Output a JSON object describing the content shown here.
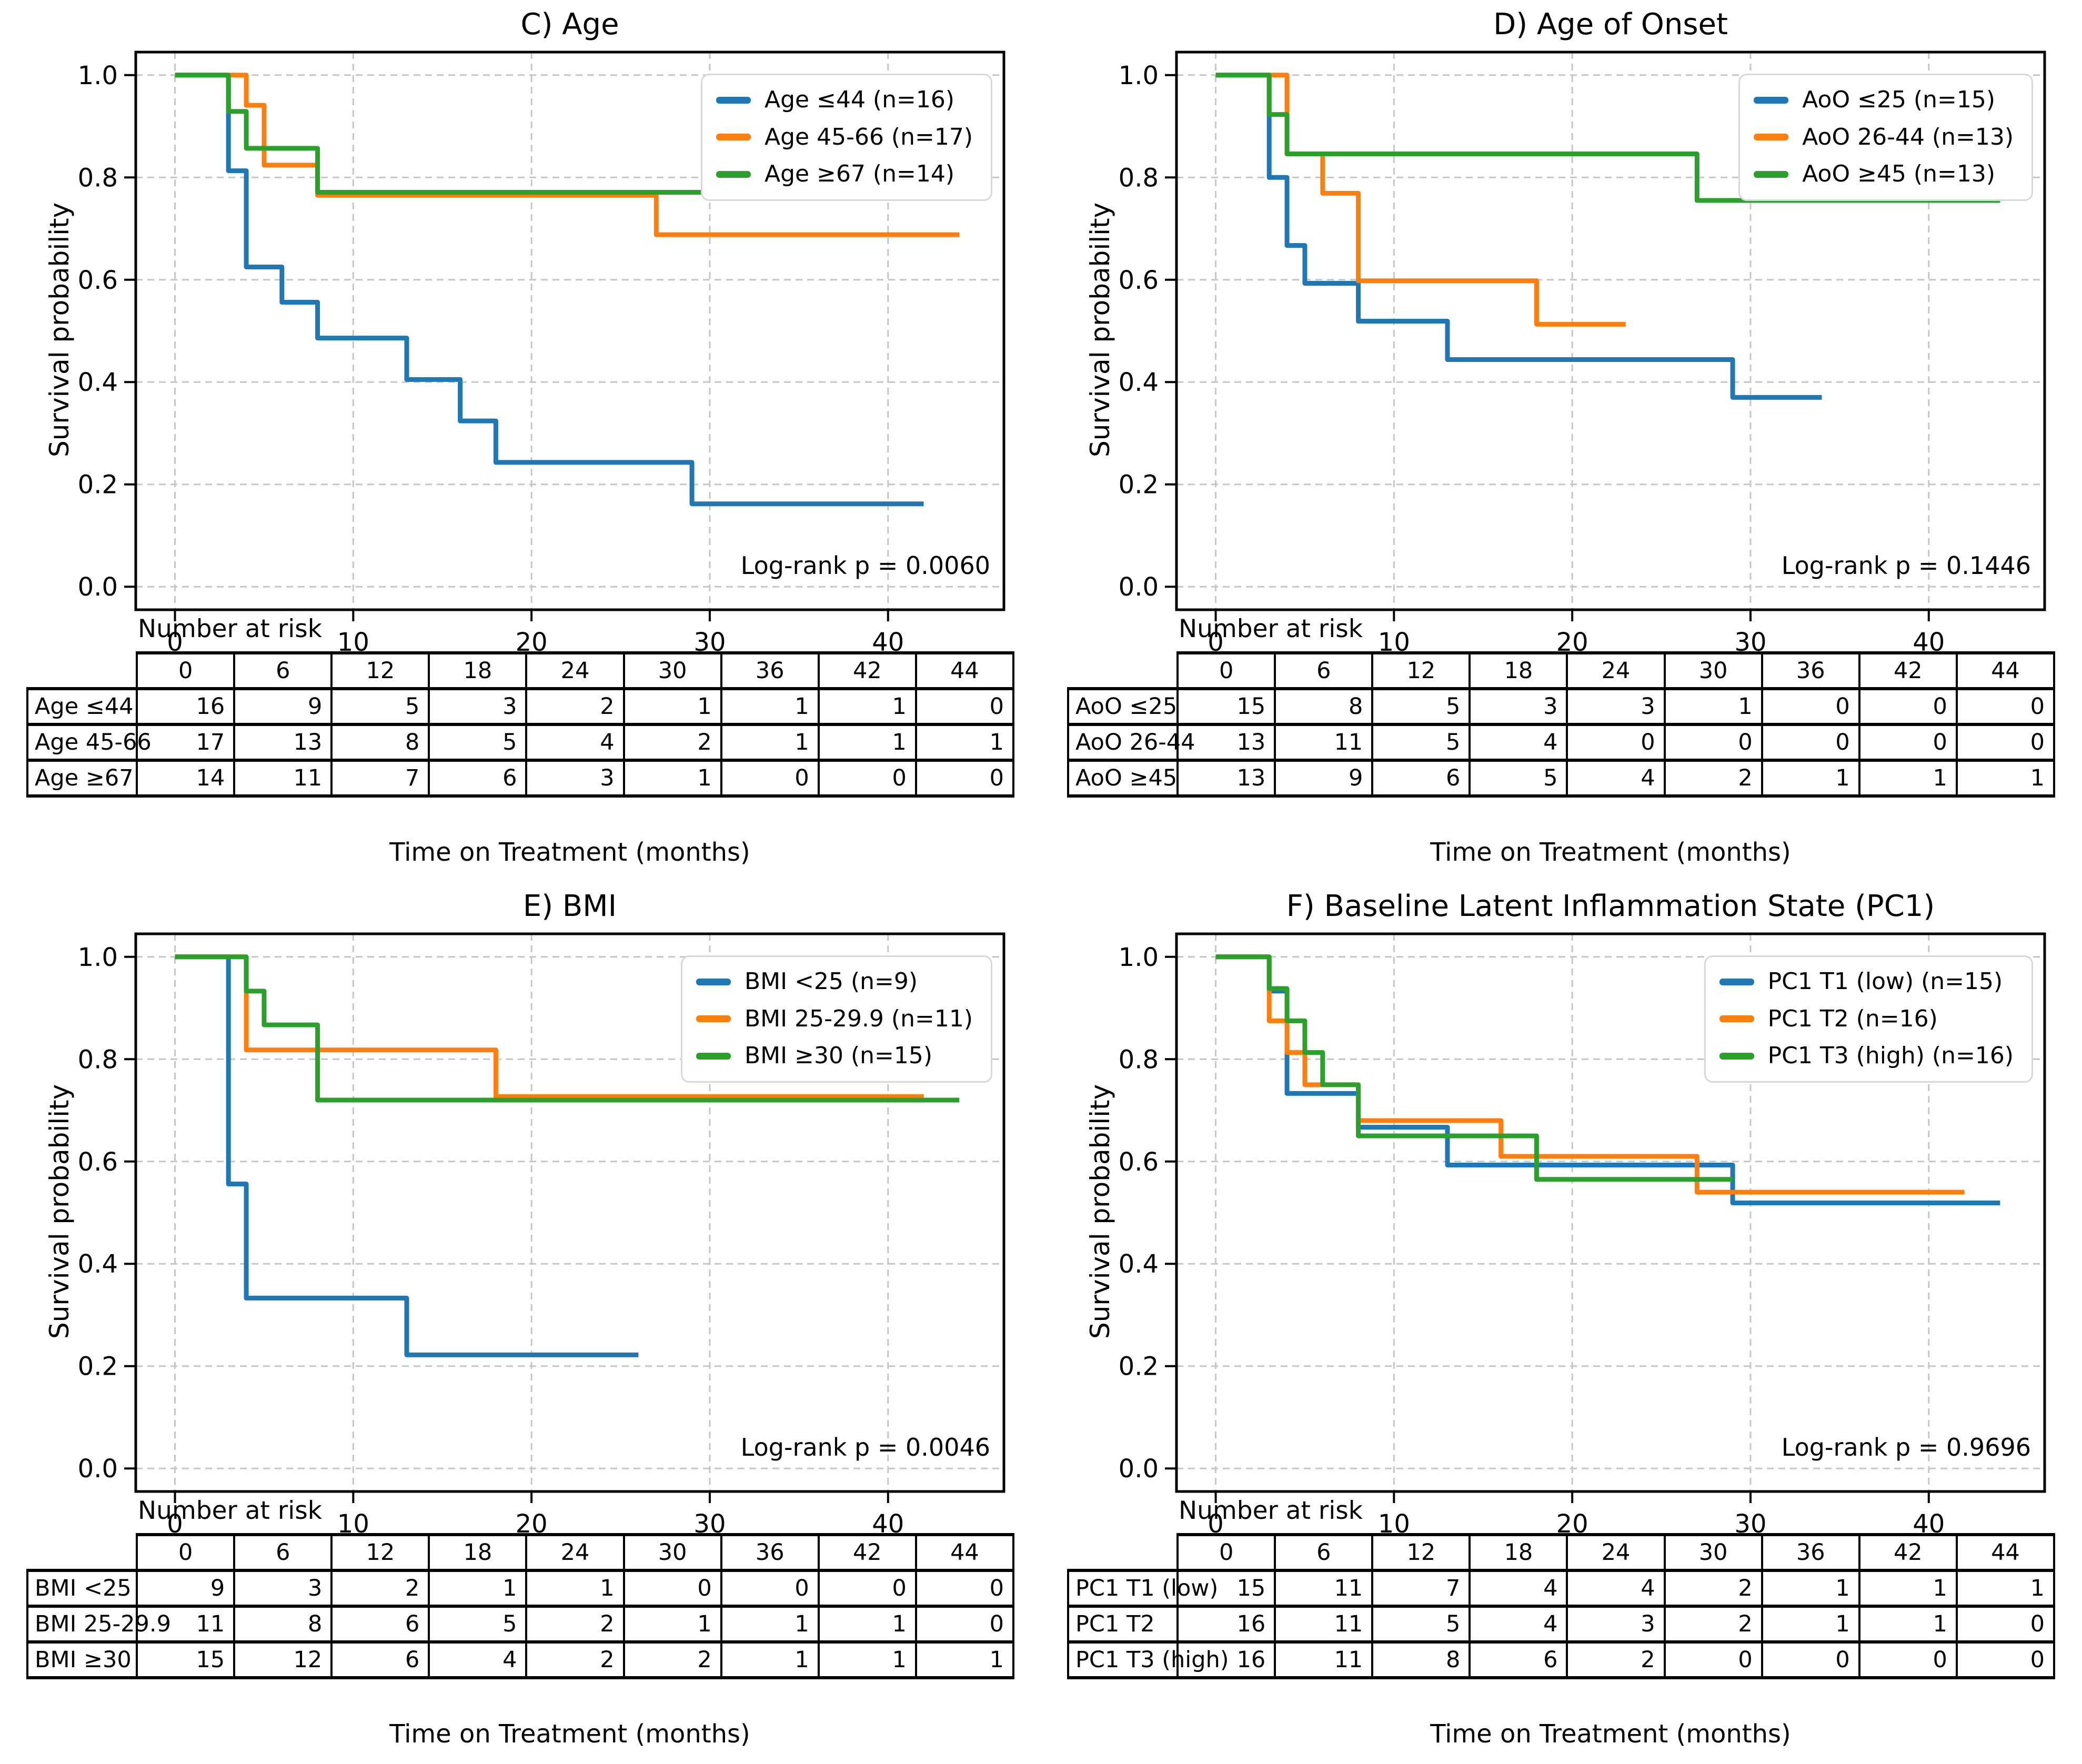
{
  "shared": {
    "ylabel": "Survival probability",
    "xlabel": "Time on Treatment (months)",
    "number_at_risk_label": "Number at risk",
    "x_ticks": [
      0,
      10,
      20,
      30,
      40
    ],
    "y_ticks": [
      0.0,
      0.2,
      0.4,
      0.6,
      0.8,
      1.0
    ],
    "risk_times": [
      0,
      6,
      12,
      18,
      24,
      30,
      36,
      42,
      44
    ],
    "colors": {
      "blue": "#1f77b4",
      "orange": "#ff7f0e",
      "green": "#2ca02c"
    }
  },
  "chart_data": [
    {
      "type": "line",
      "subtype": "kaplan-meier-step",
      "title": "C) Age",
      "xlabel": "Time on Treatment (months)",
      "ylabel": "Survival probability",
      "pvalue_label": "Log-rank p = 0.0060",
      "log_rank_p": 0.006,
      "xlim": [
        -2.2,
        46.5
      ],
      "ylim": [
        -0.045,
        1.045
      ],
      "x_ticks": [
        0,
        10,
        20,
        30,
        40
      ],
      "y_ticks": [
        0.0,
        0.2,
        0.4,
        0.6,
        0.8,
        1.0
      ],
      "grid": true,
      "legend_position": "upper right",
      "series": [
        {
          "name": "Age ≤44 (n=16)",
          "color": "#1f77b4",
          "steps": [
            [
              0,
              1
            ],
            [
              3,
              0.813
            ],
            [
              4,
              0.625
            ],
            [
              6,
              0.556
            ],
            [
              8,
              0.486
            ],
            [
              13,
              0.405
            ],
            [
              16,
              0.324
            ],
            [
              18,
              0.243
            ],
            [
              29,
              0.162
            ],
            [
              42,
              0.162
            ]
          ]
        },
        {
          "name": "Age 45-66 (n=17)",
          "color": "#ff7f0e",
          "steps": [
            [
              0,
              1
            ],
            [
              4,
              0.941
            ],
            [
              5,
              0.824
            ],
            [
              8,
              0.765
            ],
            [
              27,
              0.688
            ],
            [
              44,
              0.688
            ]
          ]
        },
        {
          "name": "Age ≥67 (n=14)",
          "color": "#2ca02c",
          "steps": [
            [
              0,
              1
            ],
            [
              3,
              0.929
            ],
            [
              4,
              0.857
            ],
            [
              8,
              0.771
            ],
            [
              30,
              0.771
            ]
          ]
        }
      ],
      "risk_table": {
        "times": [
          0,
          6,
          12,
          18,
          24,
          30,
          36,
          42,
          44
        ],
        "rows": [
          {
            "label": "Age ≤44",
            "values": [
              16,
              9,
              5,
              3,
              2,
              1,
              1,
              1,
              0
            ]
          },
          {
            "label": "Age 45-66",
            "values": [
              17,
              13,
              8,
              5,
              4,
              2,
              1,
              1,
              1
            ]
          },
          {
            "label": "Age ≥67",
            "values": [
              14,
              11,
              7,
              6,
              3,
              1,
              0,
              0,
              0
            ]
          }
        ]
      }
    },
    {
      "type": "line",
      "subtype": "kaplan-meier-step",
      "title": "D) Age of Onset",
      "xlabel": "Time on Treatment (months)",
      "ylabel": "Survival probability",
      "pvalue_label": "Log-rank p = 0.1446",
      "log_rank_p": 0.1446,
      "xlim": [
        -2.2,
        46.5
      ],
      "ylim": [
        -0.045,
        1.045
      ],
      "x_ticks": [
        0,
        10,
        20,
        30,
        40
      ],
      "y_ticks": [
        0.0,
        0.2,
        0.4,
        0.6,
        0.8,
        1.0
      ],
      "grid": true,
      "legend_position": "upper right",
      "series": [
        {
          "name": "AoO ≤25 (n=15)",
          "color": "#1f77b4",
          "steps": [
            [
              0,
              1
            ],
            [
              3,
              0.8
            ],
            [
              4,
              0.667
            ],
            [
              5,
              0.593
            ],
            [
              8,
              0.519
            ],
            [
              13,
              0.444
            ],
            [
              29,
              0.37
            ],
            [
              34,
              0.37
            ]
          ]
        },
        {
          "name": "AoO 26-44 (n=13)",
          "color": "#ff7f0e",
          "steps": [
            [
              0,
              1
            ],
            [
              4,
              0.846
            ],
            [
              6,
              0.769
            ],
            [
              8,
              0.598
            ],
            [
              18,
              0.513
            ],
            [
              23,
              0.513
            ]
          ]
        },
        {
          "name": "AoO ≥45 (n=13)",
          "color": "#2ca02c",
          "steps": [
            [
              0,
              1
            ],
            [
              3,
              0.923
            ],
            [
              4,
              0.846
            ],
            [
              27,
              0.755
            ],
            [
              44,
              0.755
            ]
          ]
        }
      ],
      "risk_table": {
        "times": [
          0,
          6,
          12,
          18,
          24,
          30,
          36,
          42,
          44
        ],
        "rows": [
          {
            "label": "AoO ≤25",
            "values": [
              15,
              8,
              5,
              3,
              3,
              1,
              0,
              0,
              0
            ]
          },
          {
            "label": "AoO 26-44",
            "values": [
              13,
              11,
              5,
              4,
              0,
              0,
              0,
              0,
              0
            ]
          },
          {
            "label": "AoO ≥45",
            "values": [
              13,
              9,
              6,
              5,
              4,
              2,
              1,
              1,
              1
            ]
          }
        ]
      }
    },
    {
      "type": "line",
      "subtype": "kaplan-meier-step",
      "title": "E) BMI",
      "xlabel": "Time on Treatment (months)",
      "ylabel": "Survival probability",
      "pvalue_label": "Log-rank p = 0.0046",
      "log_rank_p": 0.0046,
      "xlim": [
        -2.2,
        46.5
      ],
      "ylim": [
        -0.045,
        1.045
      ],
      "x_ticks": [
        0,
        10,
        20,
        30,
        40
      ],
      "y_ticks": [
        0.0,
        0.2,
        0.4,
        0.6,
        0.8,
        1.0
      ],
      "grid": true,
      "legend_position": "upper right",
      "series": [
        {
          "name": "BMI <25 (n=9)",
          "color": "#1f77b4",
          "steps": [
            [
              0,
              1
            ],
            [
              3,
              0.556
            ],
            [
              4,
              0.333
            ],
            [
              13,
              0.222
            ],
            [
              26,
              0.222
            ]
          ]
        },
        {
          "name": "BMI 25-29.9 (n=11)",
          "color": "#ff7f0e",
          "steps": [
            [
              0,
              1
            ],
            [
              4,
              0.818
            ],
            [
              18,
              0.727
            ],
            [
              42,
              0.727
            ]
          ]
        },
        {
          "name": "BMI ≥30 (n=15)",
          "color": "#2ca02c",
          "steps": [
            [
              0,
              1
            ],
            [
              4,
              0.933
            ],
            [
              5,
              0.867
            ],
            [
              8,
              0.72
            ],
            [
              44,
              0.72
            ]
          ]
        }
      ],
      "risk_table": {
        "times": [
          0,
          6,
          12,
          18,
          24,
          30,
          36,
          42,
          44
        ],
        "rows": [
          {
            "label": "BMI <25",
            "values": [
              9,
              3,
              2,
              1,
              1,
              0,
              0,
              0,
              0
            ]
          },
          {
            "label": "BMI 25-29.9",
            "values": [
              11,
              8,
              6,
              5,
              2,
              1,
              1,
              1,
              0
            ]
          },
          {
            "label": "BMI ≥30",
            "values": [
              15,
              12,
              6,
              4,
              2,
              2,
              1,
              1,
              1
            ]
          }
        ]
      }
    },
    {
      "type": "line",
      "subtype": "kaplan-meier-step",
      "title": "F) Baseline Latent Inflammation State (PC1)",
      "xlabel": "Time on Treatment (months)",
      "ylabel": "Survival probability",
      "pvalue_label": "Log-rank p = 0.9696",
      "log_rank_p": 0.9696,
      "xlim": [
        -2.2,
        46.5
      ],
      "ylim": [
        -0.045,
        1.045
      ],
      "x_ticks": [
        0,
        10,
        20,
        30,
        40
      ],
      "y_ticks": [
        0.0,
        0.2,
        0.4,
        0.6,
        0.8,
        1.0
      ],
      "grid": true,
      "legend_position": "upper right",
      "series": [
        {
          "name": "PC1 T1 (low) (n=15)",
          "color": "#1f77b4",
          "steps": [
            [
              0,
              1
            ],
            [
              3,
              0.933
            ],
            [
              4,
              0.733
            ],
            [
              8,
              0.667
            ],
            [
              13,
              0.593
            ],
            [
              29,
              0.519
            ],
            [
              44,
              0.519
            ]
          ]
        },
        {
          "name": "PC1 T2 (n=16)",
          "color": "#ff7f0e",
          "steps": [
            [
              0,
              1
            ],
            [
              3,
              0.875
            ],
            [
              4,
              0.813
            ],
            [
              5,
              0.75
            ],
            [
              8,
              0.68
            ],
            [
              16,
              0.61
            ],
            [
              27,
              0.54
            ],
            [
              42,
              0.54
            ]
          ]
        },
        {
          "name": "PC1 T3 (high) (n=16)",
          "color": "#2ca02c",
          "steps": [
            [
              0,
              1
            ],
            [
              3,
              0.938
            ],
            [
              4,
              0.875
            ],
            [
              5,
              0.813
            ],
            [
              6,
              0.75
            ],
            [
              8,
              0.65
            ],
            [
              18,
              0.565
            ],
            [
              29,
              0.565
            ]
          ]
        }
      ],
      "risk_table": {
        "times": [
          0,
          6,
          12,
          18,
          24,
          30,
          36,
          42,
          44
        ],
        "rows": [
          {
            "label": "PC1 T1 (low)",
            "values": [
              15,
              11,
              7,
              4,
              4,
              2,
              1,
              1,
              1
            ]
          },
          {
            "label": "PC1 T2",
            "values": [
              16,
              11,
              5,
              4,
              3,
              2,
              1,
              1,
              0
            ]
          },
          {
            "label": "PC1 T3 (high)",
            "values": [
              16,
              11,
              8,
              6,
              2,
              0,
              0,
              0,
              0
            ]
          }
        ]
      }
    }
  ]
}
